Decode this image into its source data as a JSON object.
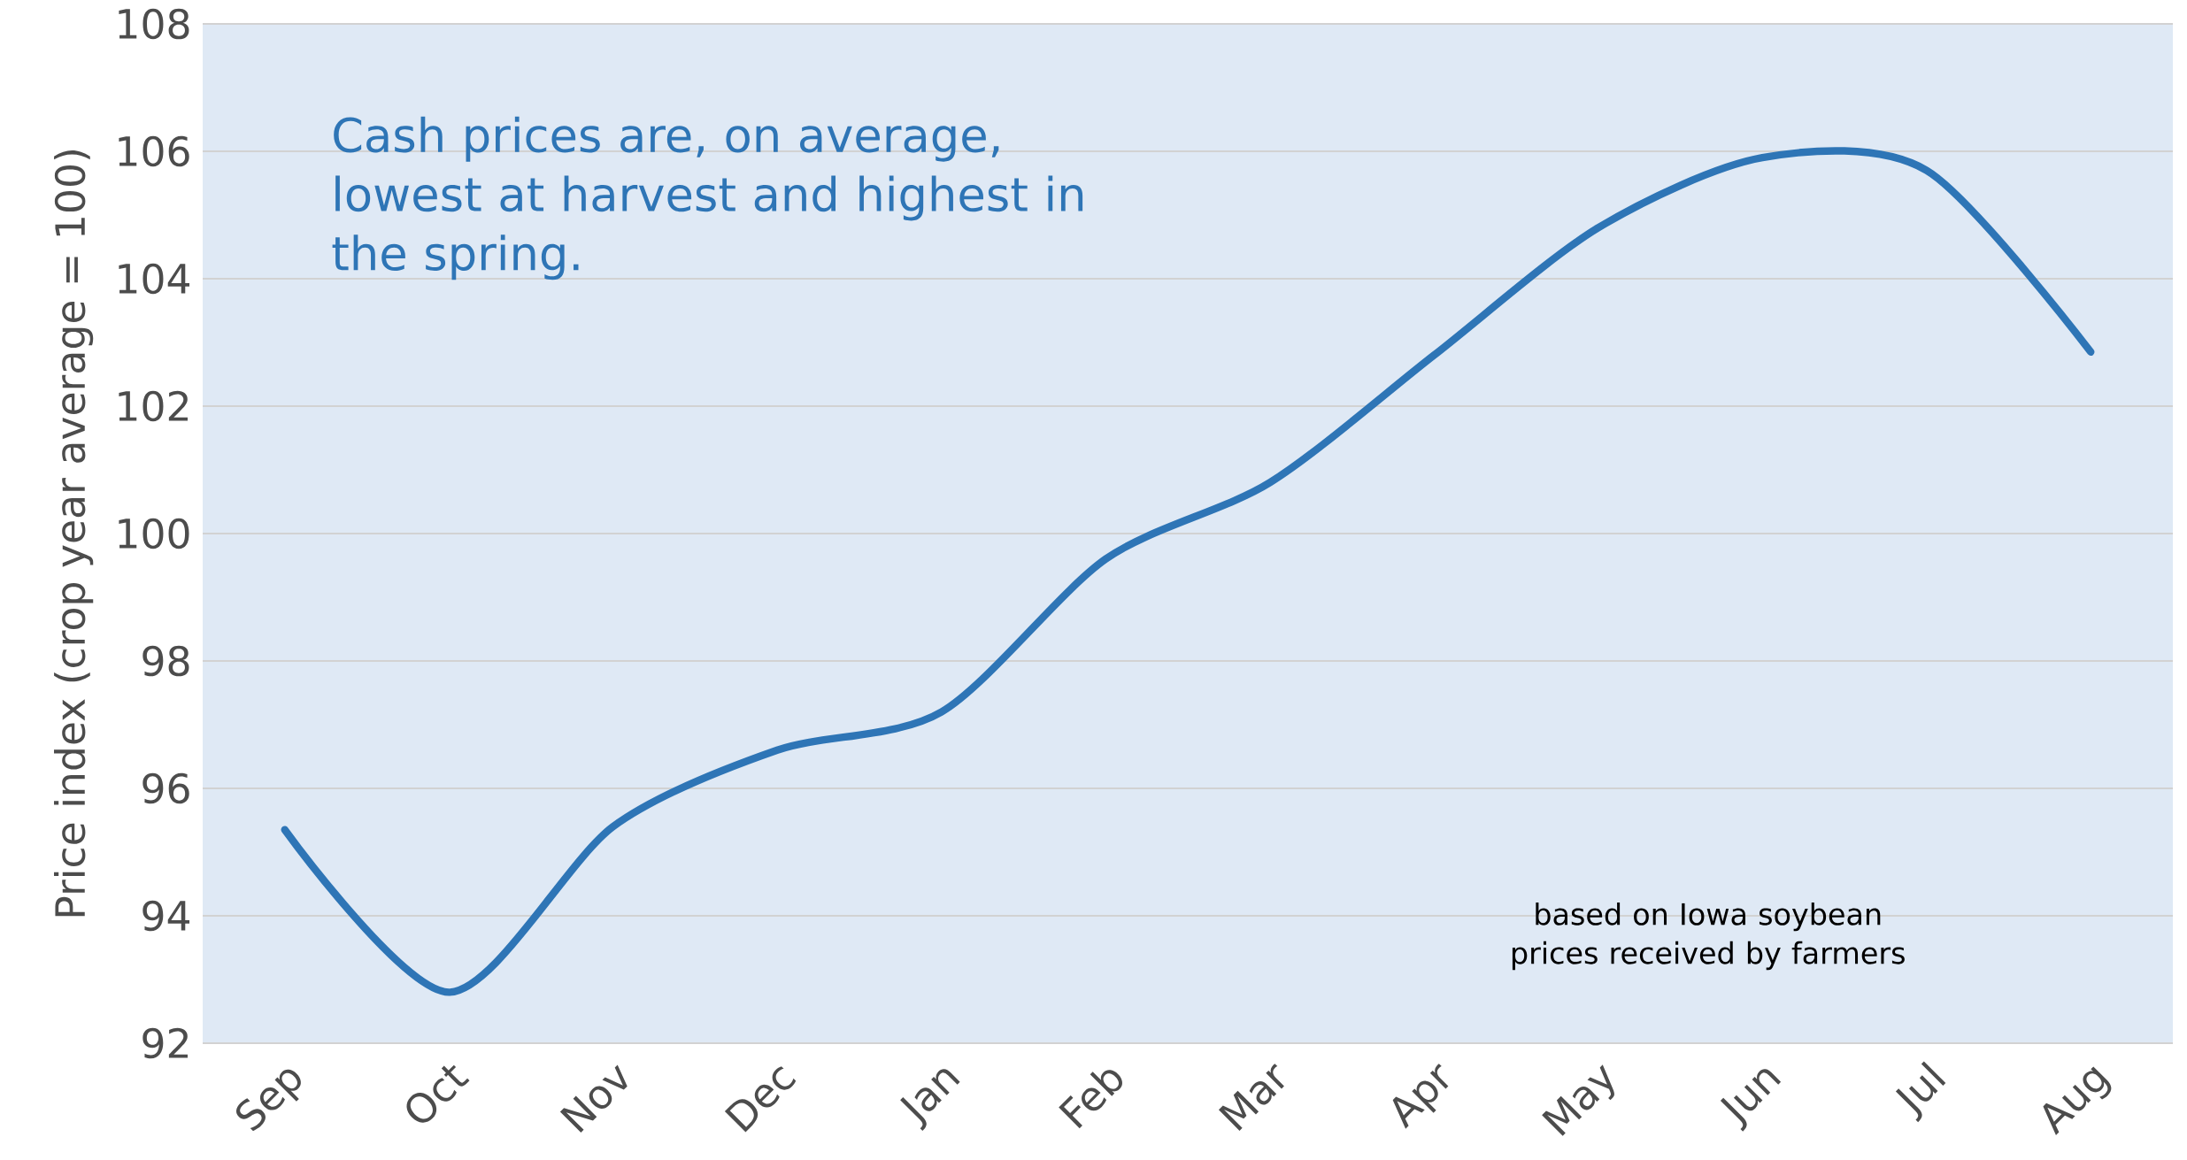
{
  "chart_data": {
    "type": "line",
    "ylabel": "Price index (crop year average = 100)",
    "categories": [
      "Sep",
      "Oct",
      "Nov",
      "Dec",
      "Jan",
      "Feb",
      "Mar",
      "Apr",
      "May",
      "Jun",
      "Jul",
      "Aug"
    ],
    "series": [
      {
        "color": "#2e75b6",
        "values": [
          95.35,
          92.8,
          95.4,
          96.6,
          97.2,
          99.6,
          100.8,
          102.8,
          104.8,
          105.9,
          105.7,
          102.85
        ]
      }
    ],
    "ylim": [
      92,
      108
    ],
    "yticks": [
      92,
      94,
      96,
      98,
      100,
      102,
      104,
      106,
      108
    ],
    "grid": "y",
    "marker": "none",
    "line_style": "solid",
    "annotations": [
      "Cash prices are, on average, lowest at harvest and highest in the spring.",
      "based on Iowa soybean prices received by farmers"
    ]
  }
}
